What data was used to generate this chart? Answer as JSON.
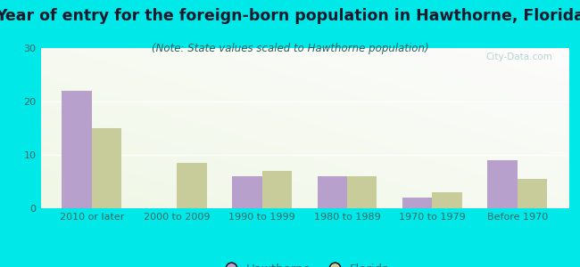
{
  "title": "Year of entry for the foreign-born population in Hawthorne, Florida",
  "subtitle": "(Note: State values scaled to Hawthorne population)",
  "categories": [
    "2010 or later",
    "2000 to 2009",
    "1990 to 1999",
    "1980 to 1989",
    "1970 to 1979",
    "Before 1970"
  ],
  "hawthorne_values": [
    22,
    0,
    6,
    6,
    2,
    9
  ],
  "florida_values": [
    15,
    8.5,
    7,
    6,
    3,
    5.5
  ],
  "hawthorne_color": "#b8a0cc",
  "florida_color": "#c8cc9a",
  "background_color": "#00e8e8",
  "ylim": [
    0,
    30
  ],
  "yticks": [
    0,
    10,
    20,
    30
  ],
  "bar_width": 0.35,
  "title_fontsize": 12.5,
  "subtitle_fontsize": 8.5,
  "legend_fontsize": 9.5,
  "tick_fontsize": 8,
  "watermark": "City-Data.com"
}
